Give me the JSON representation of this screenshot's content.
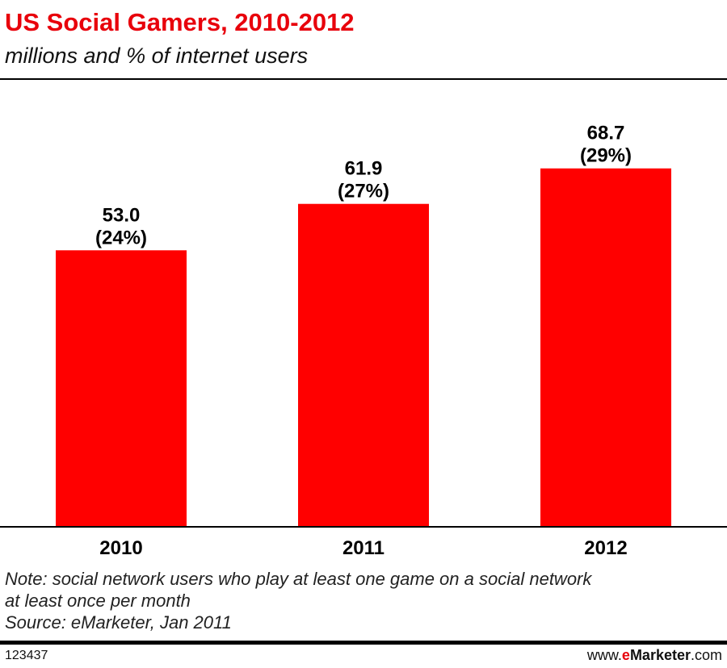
{
  "header": {
    "title": "US Social Gamers, 2010-2012",
    "subtitle": "millions and % of internet users"
  },
  "chart_data": {
    "type": "bar",
    "categories": [
      "2010",
      "2011",
      "2012"
    ],
    "values": [
      53.0,
      61.9,
      68.7
    ],
    "percent_labels": [
      "(24%)",
      "(27%)",
      "(29%)"
    ],
    "value_labels": [
      "53.0",
      "61.9",
      "68.7"
    ],
    "ylim": [
      0,
      75
    ],
    "grid": false,
    "bar_color": "#ff0000"
  },
  "footer": {
    "note_line1": "Note: social network users who play at least one game on a social network",
    "note_line2": "at least once per month",
    "source": "Source: eMarketer, Jan 2011",
    "chart_id": "123437",
    "brand_prefix": "www.",
    "brand_e": "e",
    "brand_name": "Marketer",
    "brand_suffix": ".com"
  }
}
